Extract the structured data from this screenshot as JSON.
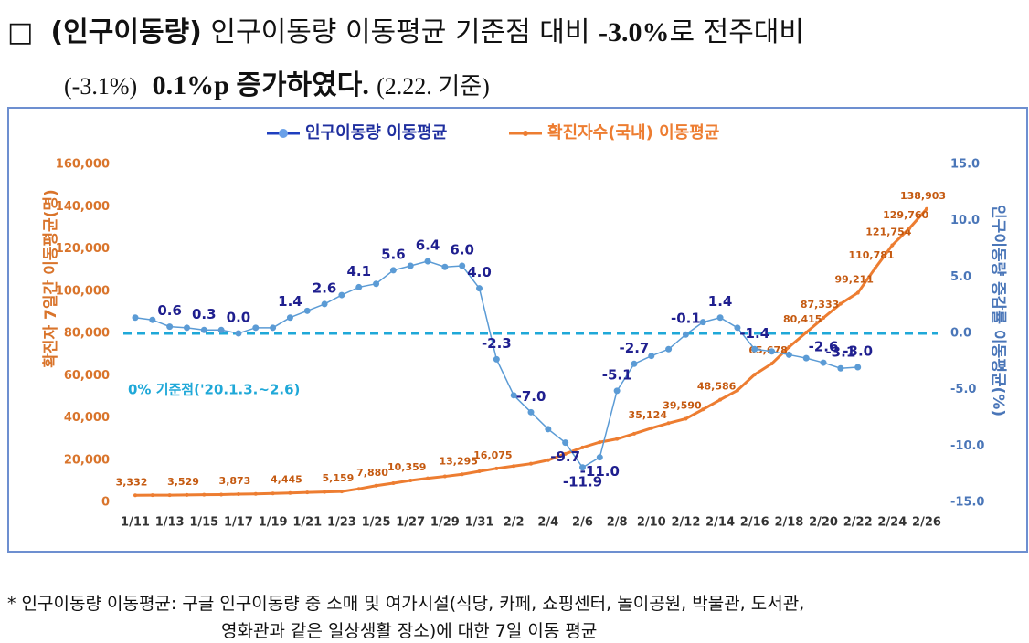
{
  "header": {
    "marker": "□",
    "line1": [
      "(인구이동량)",
      "인구이동량 이동평균 기준점 대비 ",
      "-3.0%",
      "로 전주대비"
    ],
    "line2": [
      "(-3.1%)",
      "0.1%p 증가하였다.",
      "(2.22. 기준)"
    ]
  },
  "chart_data": {
    "type": "line",
    "ylabel": "확진자 7일간 이동평균(명)",
    "y2label": "인구이동량 증감률 이동평균(%)",
    "legend": "top",
    "categories": [
      "1/11",
      null,
      "1/13",
      null,
      "1/15",
      null,
      "1/17",
      null,
      "1/19",
      null,
      "1/21",
      null,
      "1/23",
      null,
      "1/25",
      null,
      "1/27",
      null,
      "1/29",
      null,
      "1/31",
      null,
      "2/2",
      null,
      "2/4",
      null,
      "2/6",
      null,
      "2/8",
      null,
      "2/10",
      null,
      "2/12",
      null,
      "2/14",
      null,
      "2/16",
      null,
      "2/18",
      null,
      "2/20",
      null,
      "2/22",
      null,
      "2/24",
      null,
      "2/26"
    ],
    "ylim": [
      0,
      160000
    ],
    "yticks": [
      0,
      {
        "value": 20000,
        "label": "20,000"
      },
      {
        "value": 40000,
        "label": "40,000"
      },
      {
        "value": 60000,
        "label": "60,000"
      },
      {
        "value": 80000,
        "label": "80,000"
      },
      {
        "value": 100000,
        "label": "100,000"
      },
      {
        "value": 120000,
        "label": "120,000"
      },
      {
        "value": 140000,
        "label": "140,000"
      },
      {
        "value": 160000,
        "label": "160,000"
      }
    ],
    "y2lim": [
      -15,
      15
    ],
    "y2ticks": [
      {
        "value": -15,
        "label": "-15.0"
      },
      {
        "value": -10,
        "label": "-10.0"
      },
      {
        "value": -5,
        "label": "-5.0"
      },
      {
        "value": 0,
        "label": "0.0"
      },
      {
        "value": 5,
        "label": "5.0"
      },
      {
        "value": 10,
        "label": "10.0"
      },
      {
        "value": 15,
        "label": "15.0"
      }
    ],
    "reference_line": {
      "value": 0,
      "axis": "y2",
      "color": "#1fa8d8",
      "label": "0% 기준점('20.1.3.~2.6)"
    },
    "series": [
      {
        "name": "인구이동량 이동평균",
        "color": "#4472c4",
        "axis": "y2",
        "values": [
          1.4,
          1.2,
          0.6,
          0.5,
          0.3,
          0.3,
          0.0,
          0.5,
          0.5,
          1.4,
          2.0,
          2.6,
          3.4,
          4.1,
          4.4,
          5.6,
          6.0,
          6.4,
          5.9,
          6.0,
          4.0,
          -2.3,
          -5.5,
          -7.0,
          -8.5,
          -9.7,
          -11.9,
          -11.0,
          -5.1,
          -2.7,
          -2.0,
          -1.4,
          -0.1,
          1.0,
          1.4,
          0.5,
          -1.4,
          -1.6,
          -1.9,
          -2.2,
          -2.6,
          -3.1,
          -3.0,
          null,
          null,
          null,
          null
        ],
        "value_labels": [
          null,
          null,
          "0.6",
          null,
          "0.3",
          null,
          "0.0",
          null,
          null,
          "1.4",
          null,
          "2.6",
          null,
          "4.1",
          null,
          "5.6",
          null,
          "6.4",
          null,
          "6.0",
          "4.0",
          "-2.3",
          null,
          "-7.0",
          null,
          "-9.7",
          "-11.9",
          "-11.0",
          "-5.1",
          "-2.7",
          null,
          null,
          "-0.1",
          null,
          "1.4",
          null,
          "-1.4",
          null,
          null,
          null,
          "-2.6",
          "-3.1",
          "-3.0",
          null,
          null,
          null,
          null
        ]
      },
      {
        "name": "확진자수(국내) 이동평균",
        "color": "#ed7d31",
        "values": [
          3332,
          3380,
          3430,
          3529,
          3600,
          3700,
          3873,
          4000,
          4200,
          4445,
          4700,
          4900,
          5159,
          6400,
          7880,
          9100,
          10359,
          11400,
          12300,
          13295,
          14700,
          16075,
          17200,
          18300,
          20000,
          23000,
          26000,
          28500,
          30000,
          32500,
          35124,
          37500,
          39590,
          44000,
          48586,
          53000,
          60500,
          65678,
          73500,
          80415,
          87333,
          94000,
          99211,
          110781,
          121754,
          129760,
          138903
        ],
        "value_labels": [
          "3,332",
          null,
          null,
          "3,529",
          null,
          null,
          "3,873",
          null,
          null,
          "4,445",
          null,
          null,
          "5,159",
          null,
          "7,880",
          null,
          "10,359",
          null,
          null,
          "13,295",
          null,
          "16,075",
          null,
          null,
          null,
          null,
          null,
          null,
          null,
          null,
          "35,124",
          null,
          "39,590",
          null,
          "48,586",
          null,
          null,
          "65,678",
          null,
          "80,415",
          "87,333",
          null,
          "99,211",
          "110,781",
          "121,754",
          "129,760",
          "138,903"
        ]
      }
    ]
  },
  "footnote": [
    "* 인구이동량 이동평균: 구글 인구이동량 중 소매 및 여가시설(식당, 카페, 쇼핑센터, 놀이공원, 박물관, 도서관,",
    "영화관과 같은 일상생활 장소)에 대한 7일 이동 평균"
  ]
}
